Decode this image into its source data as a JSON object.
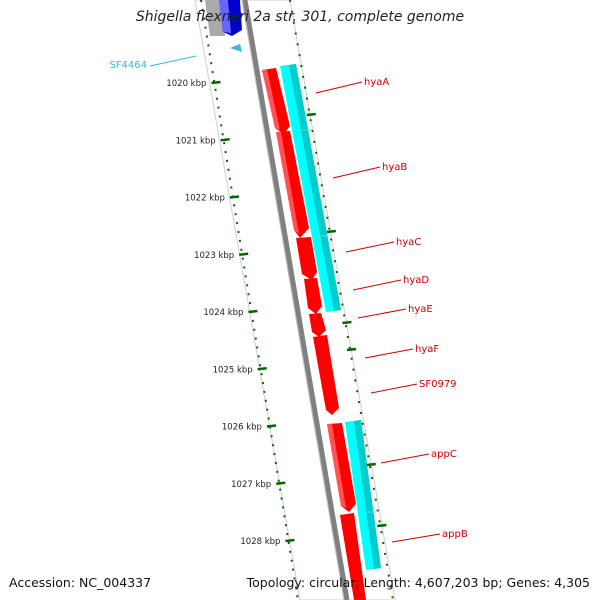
{
  "title": "Shigella flexneri 2a str. 301, complete genome",
  "footer": {
    "accession": "Accession: NC_004337",
    "summary": "Topology: circular; Length: 4,607,203 bp; Genes: 4,305"
  },
  "colors": {
    "gene_red": "#ff0000",
    "gene_cyan": "#00ffff",
    "gene_blue": "#0000ff",
    "tick_green": "#006600",
    "label_red": "#cc0000",
    "label_cyan": "#33bbdd",
    "backbone": "#808080"
  },
  "scale": {
    "ticks": [
      {
        "label": "1020 kbp"
      },
      {
        "label": "1021 kbp"
      },
      {
        "label": "1022 kbp"
      },
      {
        "label": "1023 kbp"
      },
      {
        "label": "1024 kbp"
      },
      {
        "label": "1025 kbp"
      },
      {
        "label": "1026 kbp"
      },
      {
        "label": "1027 kbp"
      },
      {
        "label": "1028 kbp"
      }
    ]
  },
  "gene_labels": [
    {
      "text": "SF4464",
      "color": "cyan"
    },
    {
      "text": "hyaA",
      "color": "red"
    },
    {
      "text": "hyaB",
      "color": "red"
    },
    {
      "text": "hyaC",
      "color": "red"
    },
    {
      "text": "hyaD",
      "color": "red"
    },
    {
      "text": "hyaE",
      "color": "red"
    },
    {
      "text": "hyaF",
      "color": "red"
    },
    {
      "text": "SF0979",
      "color": "red"
    },
    {
      "text": "appC",
      "color": "red"
    },
    {
      "text": "appB",
      "color": "red"
    }
  ]
}
